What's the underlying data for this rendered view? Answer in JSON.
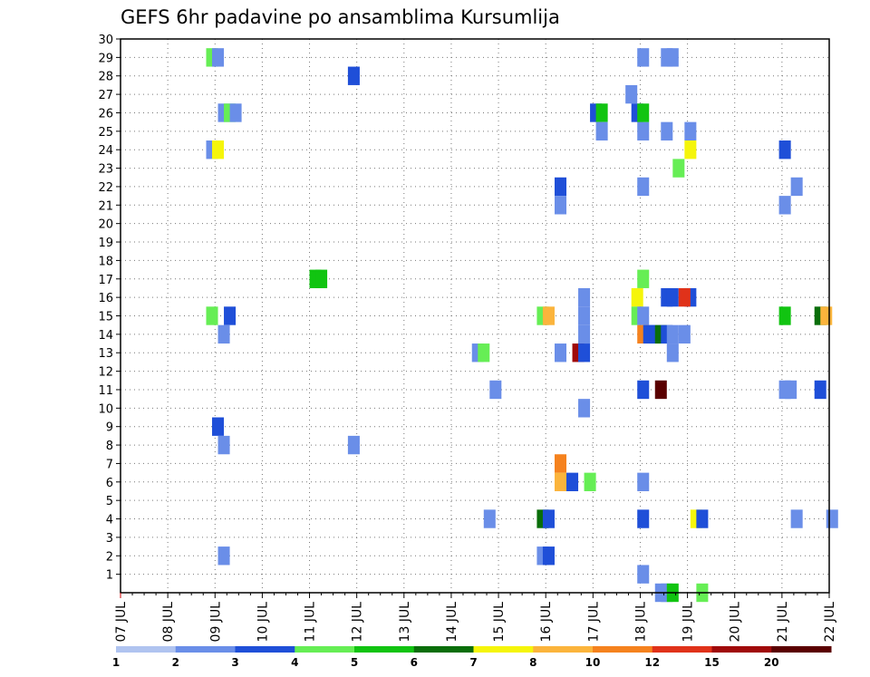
{
  "chart_data": {
    "type": "heatmap",
    "title": "GEFS 6hr padavine po ansamblima Kursumlija",
    "xlabel": "",
    "ylabel": "",
    "x_tick_labels": [
      "07 JUL",
      "08 JUL",
      "09 JUL",
      "10 JUL",
      "11 JUL",
      "12 JUL",
      "13 JUL",
      "14 JUL",
      "15 JUL",
      "16 JUL",
      "17 JUL",
      "18 JUL",
      "19 JUL",
      "20 JUL",
      "21 JUL",
      "22 JUL"
    ],
    "y_tick_labels": [
      "1",
      "2",
      "3",
      "4",
      "5",
      "6",
      "7",
      "8",
      "9",
      "10",
      "11",
      "12",
      "13",
      "14",
      "15",
      "16",
      "17",
      "18",
      "19",
      "20",
      "21",
      "22",
      "23",
      "24",
      "25",
      "26",
      "27",
      "28",
      "29",
      "30"
    ],
    "xlim": [
      0,
      60
    ],
    "ylim": [
      0,
      30
    ],
    "grid": true,
    "x_unit": "6-hour step from 07 JUL 00Z",
    "colorbar": {
      "labels": [
        "1",
        "2",
        "3",
        "4",
        "5",
        "6",
        "7",
        "8",
        "10",
        "12",
        "15",
        "20"
      ],
      "colors": [
        "#b0c4f0",
        "#6a8ee8",
        "#1f4fd8",
        "#66ee55",
        "#11c411",
        "#0a6e0a",
        "#f5f50a",
        "#fbb43c",
        "#f5821e",
        "#e0321a",
        "#a00a0a",
        "#5a0000"
      ]
    },
    "cells": [
      {
        "x": 7.75,
        "y": 29,
        "v": 3
      },
      {
        "x": 8.25,
        "y": 29,
        "v": 1
      },
      {
        "x": 19.75,
        "y": 28,
        "v": 2
      },
      {
        "x": 8.75,
        "y": 26,
        "v": 1
      },
      {
        "x": 9.25,
        "y": 26,
        "v": 3
      },
      {
        "x": 9.75,
        "y": 26,
        "v": 1
      },
      {
        "x": 7.75,
        "y": 24,
        "v": 1
      },
      {
        "x": 8.25,
        "y": 24,
        "v": 6
      },
      {
        "x": 16.5,
        "y": 17,
        "v": 4
      },
      {
        "x": 17.0,
        "y": 17,
        "v": 4
      },
      {
        "x": 7.75,
        "y": 15,
        "v": 3
      },
      {
        "x": 9.25,
        "y": 15,
        "v": 2
      },
      {
        "x": 8.75,
        "y": 14,
        "v": 1
      },
      {
        "x": 30.25,
        "y": 13,
        "v": 1
      },
      {
        "x": 30.75,
        "y": 13,
        "v": 3
      },
      {
        "x": 31.75,
        "y": 11,
        "v": 1
      },
      {
        "x": 31.25,
        "y": 4,
        "v": 1
      },
      {
        "x": 8.25,
        "y": 9,
        "v": 2
      },
      {
        "x": 8.75,
        "y": 8,
        "v": 1
      },
      {
        "x": 19.75,
        "y": 8,
        "v": 1
      },
      {
        "x": 8.75,
        "y": 2,
        "v": 1
      },
      {
        "x": 43.25,
        "y": 27,
        "v": 1
      },
      {
        "x": 40.25,
        "y": 26,
        "v": 2
      },
      {
        "x": 40.75,
        "y": 26,
        "v": 4
      },
      {
        "x": 40.75,
        "y": 25,
        "v": 1
      },
      {
        "x": 37.25,
        "y": 22,
        "v": 2
      },
      {
        "x": 37.25,
        "y": 21,
        "v": 1
      },
      {
        "x": 35.75,
        "y": 15,
        "v": 3
      },
      {
        "x": 36.25,
        "y": 15,
        "v": 7
      },
      {
        "x": 39.25,
        "y": 16,
        "v": 1
      },
      {
        "x": 39.25,
        "y": 15,
        "v": 1
      },
      {
        "x": 39.25,
        "y": 14,
        "v": 1
      },
      {
        "x": 37.25,
        "y": 13,
        "v": 1
      },
      {
        "x": 38.75,
        "y": 13,
        "v": 10
      },
      {
        "x": 39.25,
        "y": 13,
        "v": 2
      },
      {
        "x": 39.25,
        "y": 10,
        "v": 1
      },
      {
        "x": 37.25,
        "y": 7,
        "v": 8
      },
      {
        "x": 37.25,
        "y": 6,
        "v": 7
      },
      {
        "x": 38.25,
        "y": 6,
        "v": 2
      },
      {
        "x": 39.75,
        "y": 6,
        "v": 3
      },
      {
        "x": 35.75,
        "y": 4,
        "v": 5
      },
      {
        "x": 36.25,
        "y": 4,
        "v": 2
      },
      {
        "x": 35.75,
        "y": 2,
        "v": 1
      },
      {
        "x": 36.25,
        "y": 2,
        "v": 2
      },
      {
        "x": 44.25,
        "y": 29,
        "v": 1
      },
      {
        "x": 46.25,
        "y": 29,
        "v": 1
      },
      {
        "x": 46.75,
        "y": 29,
        "v": 1
      },
      {
        "x": 44.25,
        "y": 25,
        "v": 1
      },
      {
        "x": 46.25,
        "y": 25,
        "v": 1
      },
      {
        "x": 48.25,
        "y": 25,
        "v": 1
      },
      {
        "x": 48.25,
        "y": 24,
        "v": 6
      },
      {
        "x": 47.25,
        "y": 23,
        "v": 3
      },
      {
        "x": 44.25,
        "y": 22,
        "v": 1
      },
      {
        "x": 43.75,
        "y": 26,
        "v": 2
      },
      {
        "x": 44.25,
        "y": 26,
        "v": 4
      },
      {
        "x": 44.25,
        "y": 17,
        "v": 3
      },
      {
        "x": 43.75,
        "y": 16,
        "v": 6
      },
      {
        "x": 46.25,
        "y": 16,
        "v": 2
      },
      {
        "x": 46.75,
        "y": 16,
        "v": 2
      },
      {
        "x": 48.25,
        "y": 16,
        "v": 2
      },
      {
        "x": 47.75,
        "y": 16,
        "v": 9
      },
      {
        "x": 43.75,
        "y": 15,
        "v": 3
      },
      {
        "x": 44.25,
        "y": 15,
        "v": 1
      },
      {
        "x": 44.25,
        "y": 14,
        "v": 8
      },
      {
        "x": 44.75,
        "y": 14,
        "v": 2
      },
      {
        "x": 45.25,
        "y": 14,
        "v": 2
      },
      {
        "x": 45.75,
        "y": 14,
        "v": 5
      },
      {
        "x": 46.25,
        "y": 14,
        "v": 2
      },
      {
        "x": 46.75,
        "y": 14,
        "v": 1
      },
      {
        "x": 47.75,
        "y": 14,
        "v": 1
      },
      {
        "x": 46.75,
        "y": 13,
        "v": 1
      },
      {
        "x": 44.25,
        "y": 11,
        "v": 2
      },
      {
        "x": 45.75,
        "y": 11,
        "v": 11
      },
      {
        "x": 44.25,
        "y": 6,
        "v": 1
      },
      {
        "x": 44.25,
        "y": 4,
        "v": 2
      },
      {
        "x": 48.75,
        "y": 4,
        "v": 6
      },
      {
        "x": 49.25,
        "y": 4,
        "v": 2
      },
      {
        "x": 44.25,
        "y": 1,
        "v": 1
      },
      {
        "x": 45.75,
        "y": 0,
        "v": 1
      },
      {
        "x": 46.25,
        "y": 0,
        "v": 1
      },
      {
        "x": 46.75,
        "y": 0,
        "v": 4
      },
      {
        "x": 49.25,
        "y": 0,
        "v": 3
      },
      {
        "x": 56.25,
        "y": 24,
        "v": 2
      },
      {
        "x": 57.25,
        "y": 22,
        "v": 1
      },
      {
        "x": 56.25,
        "y": 21,
        "v": 1
      },
      {
        "x": 56.25,
        "y": 15,
        "v": 4
      },
      {
        "x": 59.25,
        "y": 15,
        "v": 5
      },
      {
        "x": 59.75,
        "y": 15,
        "v": 7
      },
      {
        "x": 56.25,
        "y": 11,
        "v": 1
      },
      {
        "x": 56.75,
        "y": 11,
        "v": 1
      },
      {
        "x": 59.25,
        "y": 11,
        "v": 2
      },
      {
        "x": 57.25,
        "y": 4,
        "v": 1
      },
      {
        "x": 60.25,
        "y": 4,
        "v": 1
      }
    ]
  }
}
